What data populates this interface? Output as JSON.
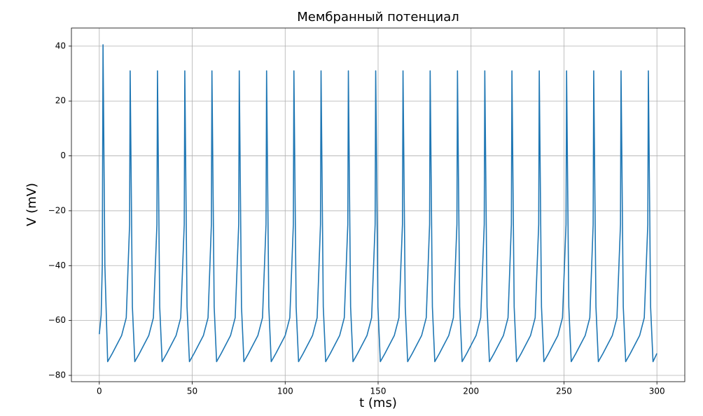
{
  "chart_data": {
    "type": "line",
    "title": "Мембранный потенциал",
    "x_label": "t (ms)",
    "y_label": "V (mV)",
    "xlim": [
      -15,
      315
    ],
    "ylim": [
      -82.3,
      46.6
    ],
    "xticks": [
      0,
      50,
      100,
      150,
      200,
      250,
      300
    ],
    "yticks": [
      {
        "value": -80,
        "label": "−80"
      },
      {
        "value": -60,
        "label": "−60"
      },
      {
        "value": -40,
        "label": "−40"
      },
      {
        "value": -20,
        "label": "−20"
      },
      0,
      20,
      40
    ],
    "grid": true,
    "x": [
      0,
      1,
      1.6,
      2.0,
      3.0,
      4.5,
      7,
      12,
      14.5,
      16.3,
      16.6,
      17.8,
      19.1,
      21.6,
      26.6,
      29.1,
      31.0,
      31.3,
      32.5,
      33.8,
      36.3,
      41.3,
      43.8,
      45.7,
      46.0,
      47.2,
      48.5,
      51.0,
      56.0,
      58.5,
      60.3,
      60.6,
      61.8,
      63.1,
      65.6,
      70.6,
      73.1,
      75.0,
      75.3,
      76.5,
      77.8,
      80.3,
      85.3,
      87.8,
      89.7,
      90.0,
      91.2,
      92.5,
      95.0,
      100.0,
      102.5,
      104.4,
      104.7,
      105.9,
      107.2,
      109.7,
      114.7,
      117.2,
      119.0,
      119.3,
      120.5,
      121.8,
      124.3,
      129.3,
      131.8,
      133.7,
      134.0,
      135.2,
      136.5,
      139.0,
      144.0,
      146.5,
      148.4,
      148.7,
      149.9,
      151.2,
      153.7,
      158.7,
      161.2,
      163.1,
      163.4,
      164.6,
      165.9,
      168.4,
      173.4,
      175.9,
      177.7,
      178.0,
      179.2,
      180.5,
      183.0,
      188.0,
      190.5,
      192.4,
      192.7,
      193.9,
      195.2,
      197.7,
      202.7,
      205.2,
      207.1,
      207.4,
      208.6,
      209.9,
      212.4,
      217.4,
      219.9,
      221.7,
      222.0,
      223.2,
      224.5,
      227.0,
      232.0,
      234.5,
      236.4,
      236.7,
      237.9,
      239.2,
      241.7,
      246.7,
      249.2,
      251.1,
      251.4,
      252.6,
      253.9,
      256.4,
      261.4,
      263.9,
      265.7,
      266.0,
      267.2,
      268.5,
      271.0,
      276.0,
      278.5,
      280.4,
      280.7,
      281.9,
      283.2,
      285.7,
      290.7,
      293.2,
      295.1,
      295.4,
      296.6,
      297.9,
      300
    ],
    "series": [
      {
        "color": "#1f77b4",
        "values": [
          -65,
          -58,
          -40,
          40.5,
          -40,
          -75,
          -72,
          -65.5,
          -59,
          -25,
          31,
          -55,
          -75,
          -72,
          -65.5,
          -59,
          -25,
          31,
          -55,
          -75,
          -72,
          -65.5,
          -59,
          -25,
          31,
          -55,
          -75,
          -72,
          -65.5,
          -59,
          -25,
          31,
          -55,
          -75,
          -72,
          -65.5,
          -59,
          -25,
          31,
          -55,
          -75,
          -72,
          -65.5,
          -59,
          -25,
          31,
          -55,
          -75,
          -72,
          -65.5,
          -59,
          -25,
          31,
          -55,
          -75,
          -72,
          -65.5,
          -59,
          -25,
          31,
          -55,
          -75,
          -72,
          -65.5,
          -59,
          -25,
          31,
          -55,
          -75,
          -72,
          -65.5,
          -59,
          -25,
          31,
          -55,
          -75,
          -72,
          -65.5,
          -59,
          -25,
          31,
          -55,
          -75,
          -72,
          -65.5,
          -59,
          -25,
          31,
          -55,
          -75,
          -72,
          -65.5,
          -59,
          -25,
          31,
          -55,
          -75,
          -72,
          -65.5,
          -59,
          -25,
          31,
          -55,
          -75,
          -72,
          -65.5,
          -59,
          -25,
          31,
          -55,
          -75,
          -72,
          -65.5,
          -59,
          -25,
          31,
          -55,
          -75,
          -72,
          -65.5,
          -59,
          -25,
          31,
          -55,
          -75,
          -72,
          -65.5,
          -59,
          -25,
          31,
          -55,
          -75,
          -72,
          -65.5,
          -59,
          -25,
          31,
          -55,
          -75,
          -72,
          -65.5,
          -59,
          -25,
          31,
          -55,
          -75,
          -72
        ]
      }
    ]
  }
}
